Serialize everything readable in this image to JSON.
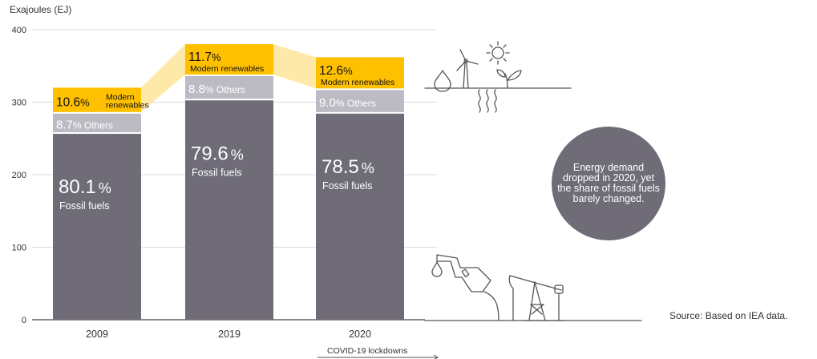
{
  "chart_data": {
    "type": "bar",
    "stacked": true,
    "ylabel": "Exajoules (EJ)",
    "ylim": [
      0,
      400
    ],
    "yticks": [
      0,
      100,
      200,
      300,
      400
    ],
    "categories": [
      "2009",
      "2019",
      "2020"
    ],
    "totals_ej": [
      320,
      380,
      362
    ],
    "series": [
      {
        "name": "Fossil fuels",
        "share_text": [
          "80.1",
          "79.6",
          "78.5"
        ],
        "percent_sign": "%",
        "share_pct": [
          80.1,
          79.6,
          78.5
        ],
        "color": "#6f6c78"
      },
      {
        "name": "Others",
        "share_text": [
          "8.7",
          "8.8",
          "9.0"
        ],
        "percent_sign": "%",
        "share_pct": [
          8.7,
          8.8,
          9.0
        ],
        "color": "#bcbac3"
      },
      {
        "name_lines": [
          [
            "Modern",
            "renewables"
          ],
          [
            "Modern renewables"
          ],
          [
            "Modern renewables"
          ]
        ],
        "share_text": [
          "10.6",
          "11.7",
          "12.6"
        ],
        "percent_sign": "%",
        "share_pct": [
          10.6,
          11.7,
          12.6
        ],
        "color": "#ffc000"
      }
    ],
    "grid": true
  },
  "annotations": {
    "covid_label": "COVID-19 lockdowns",
    "callout": "Energy demand dropped in 2020, yet the share of fossil fuels barely changed.",
    "source": "Source: Based on IEA data."
  },
  "colors": {
    "fossil": "#6f6c78",
    "others": "#bcbac3",
    "renewables": "#ffc000",
    "connector": "#ffe9a8",
    "bubble": "#6f6c78",
    "grid": "#d9d9d9",
    "icon_stroke": "#555555"
  },
  "icons": [
    "water-drop-icon",
    "wind-turbine-icon",
    "sun-icon",
    "heat-waves-icon",
    "sprout-icon",
    "fuel-nozzle-icon",
    "oil-drop-icon",
    "oil-pump-jack-icon"
  ]
}
